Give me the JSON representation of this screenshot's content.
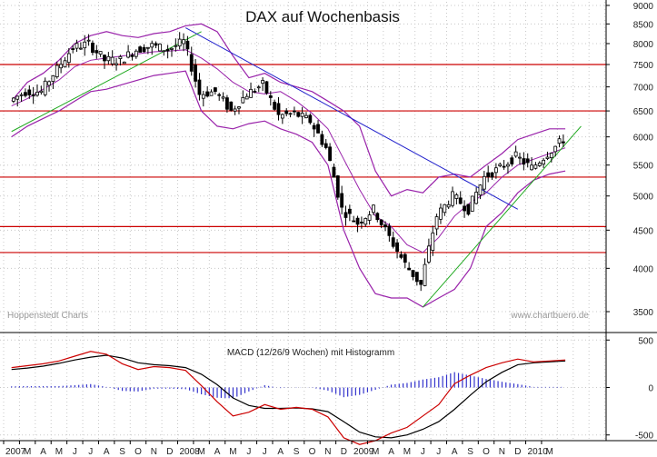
{
  "chart_data": [
    {
      "type": "candlestick",
      "title": "DAX auf Wochenbasis",
      "watermark_left": "Hoppenstedt Charts",
      "watermark_right": "www.chartbuero.de",
      "y_scale": "log",
      "ylim": [
        3300,
        9100
      ],
      "y_ticks": [
        3500,
        4000,
        4500,
        5000,
        5500,
        6000,
        6500,
        7000,
        7500,
        8000,
        8500,
        9000
      ],
      "y_tick_labels": [
        "3500",
        "4000",
        "4500",
        "5000",
        "5500",
        "6000",
        "6500",
        "7000",
        "7500",
        "8000",
        "8500",
        "9000"
      ],
      "horizontal_lines": [
        7500,
        6500,
        5300,
        4550,
        4200
      ],
      "series": [
        {
          "name": "close",
          "x": [
            "2007-01",
            "2007-02",
            "2007-03",
            "2007-04",
            "2007-05",
            "2007-06",
            "2007-07",
            "2007-08",
            "2007-09",
            "2007-10",
            "2007-11",
            "2007-12",
            "2008-01",
            "2008-02",
            "2008-03",
            "2008-04",
            "2008-05",
            "2008-06",
            "2008-07",
            "2008-08",
            "2008-09",
            "2008-10",
            "2008-11",
            "2008-12",
            "2009-01",
            "2009-02",
            "2009-03",
            "2009-04",
            "2009-05",
            "2009-06",
            "2009-07",
            "2009-08",
            "2009-09",
            "2009-10",
            "2009-11",
            "2009-12"
          ],
          "values": [
            6700,
            6900,
            6900,
            7400,
            7900,
            8000,
            7600,
            7600,
            7850,
            7950,
            7850,
            8050,
            6850,
            6900,
            6500,
            6850,
            7050,
            6400,
            6450,
            6300,
            5800,
            4800,
            4600,
            4800,
            4400,
            4050,
            3800,
            4700,
            5000,
            4800,
            5300,
            5450,
            5650,
            5450,
            5700,
            5950
          ]
        }
      ],
      "bollinger_top": [
        6700,
        7100,
        7300,
        7600,
        8000,
        8200,
        8300,
        8200,
        8150,
        8250,
        8300,
        8450,
        8500,
        8300,
        7700,
        7200,
        7300,
        7100,
        7000,
        6900,
        6700,
        6500,
        6200,
        5400,
        5000,
        5100,
        5050,
        5300,
        5350,
        5300,
        5500,
        5700,
        5950,
        6050,
        6150,
        6150
      ],
      "bollinger_mid": [
        6600,
        6750,
        6950,
        7150,
        7450,
        7600,
        7650,
        7700,
        7750,
        7800,
        7820,
        7850,
        7650,
        7400,
        7100,
        6900,
        6850,
        6900,
        6700,
        6450,
        6150,
        5600,
        5100,
        4700,
        4550,
        4300,
        4200,
        4400,
        4700,
        4900,
        5050,
        5300,
        5500,
        5600,
        5700,
        5800
      ],
      "bollinger_bottom": [
        6000,
        6200,
        6350,
        6500,
        6700,
        6900,
        6950,
        7050,
        7150,
        7250,
        7300,
        7350,
        6500,
        6200,
        6150,
        6250,
        6300,
        6150,
        6050,
        5900,
        5500,
        4500,
        4000,
        3700,
        3650,
        3650,
        3550,
        3650,
        3750,
        4000,
        4550,
        4750,
        5050,
        5250,
        5350,
        5400
      ],
      "trendlines": [
        {
          "color": "#22aa22",
          "from": {
            "x": "2007-01",
            "y": 6100
          },
          "to": {
            "x": "2008-01",
            "y": 8300
          }
        },
        {
          "color": "#2222cc",
          "from": {
            "x": "2007-12",
            "y": 8400
          },
          "to": {
            "x": "2009-09",
            "y": 4800
          }
        },
        {
          "color": "#22aa22",
          "from": {
            "x": "2009-03",
            "y": 3550
          },
          "to": {
            "x": "2010-01",
            "y": 6200
          }
        }
      ]
    },
    {
      "type": "line",
      "title": "MACD (12/26/9 Wochen) mit Histogramm",
      "ylim": [
        -560,
        560
      ],
      "y_ticks": [
        500,
        0,
        -500
      ],
      "y_tick_labels": [
        "500",
        "0",
        "-500"
      ],
      "x": [
        "2007-01",
        "2007-02",
        "2007-03",
        "2007-04",
        "2007-05",
        "2007-06",
        "2007-07",
        "2007-08",
        "2007-09",
        "2007-10",
        "2007-11",
        "2007-12",
        "2008-01",
        "2008-02",
        "2008-03",
        "2008-04",
        "2008-05",
        "2008-06",
        "2008-07",
        "2008-08",
        "2008-09",
        "2008-10",
        "2008-11",
        "2008-12",
        "2009-01",
        "2009-02",
        "2009-03",
        "2009-04",
        "2009-05",
        "2009-06",
        "2009-07",
        "2009-08",
        "2009-09",
        "2009-10",
        "2009-11",
        "2009-12"
      ],
      "series": [
        {
          "name": "macd",
          "color": "#cc0000",
          "values": [
            210,
            230,
            250,
            280,
            330,
            380,
            350,
            250,
            190,
            220,
            210,
            180,
            20,
            -150,
            -300,
            -260,
            -180,
            -230,
            -210,
            -230,
            -310,
            -530,
            -600,
            -560,
            -480,
            -420,
            -300,
            -180,
            40,
            130,
            210,
            260,
            300,
            270,
            280,
            290
          ]
        },
        {
          "name": "signal",
          "color": "#000000",
          "values": [
            190,
            205,
            225,
            255,
            290,
            320,
            340,
            310,
            260,
            240,
            230,
            210,
            140,
            30,
            -110,
            -190,
            -220,
            -220,
            -215,
            -225,
            -255,
            -360,
            -470,
            -520,
            -530,
            -500,
            -440,
            -360,
            -230,
            -80,
            60,
            160,
            240,
            260,
            270,
            280
          ]
        },
        {
          "name": "histogram",
          "color": "#3333cc",
          "values": [
            20,
            25,
            25,
            25,
            40,
            60,
            10,
            -60,
            -70,
            -20,
            -20,
            -30,
            -120,
            -180,
            -190,
            -70,
            40,
            -10,
            5,
            -5,
            -55,
            -170,
            -130,
            -40,
            50,
            80,
            140,
            180,
            270,
            210,
            150,
            100,
            60,
            10,
            10,
            10
          ]
        }
      ]
    }
  ],
  "x_axis": {
    "month_labels": [
      "2007",
      "M",
      "A",
      "M",
      "J",
      "J",
      "A",
      "S",
      "O",
      "N",
      "D",
      "2008",
      "M",
      "A",
      "M",
      "J",
      "J",
      "A",
      "S",
      "O",
      "N",
      "D",
      "2009",
      "M",
      "A",
      "M",
      "J",
      "J",
      "A",
      "S",
      "O",
      "N",
      "D",
      "2010",
      "M"
    ]
  }
}
